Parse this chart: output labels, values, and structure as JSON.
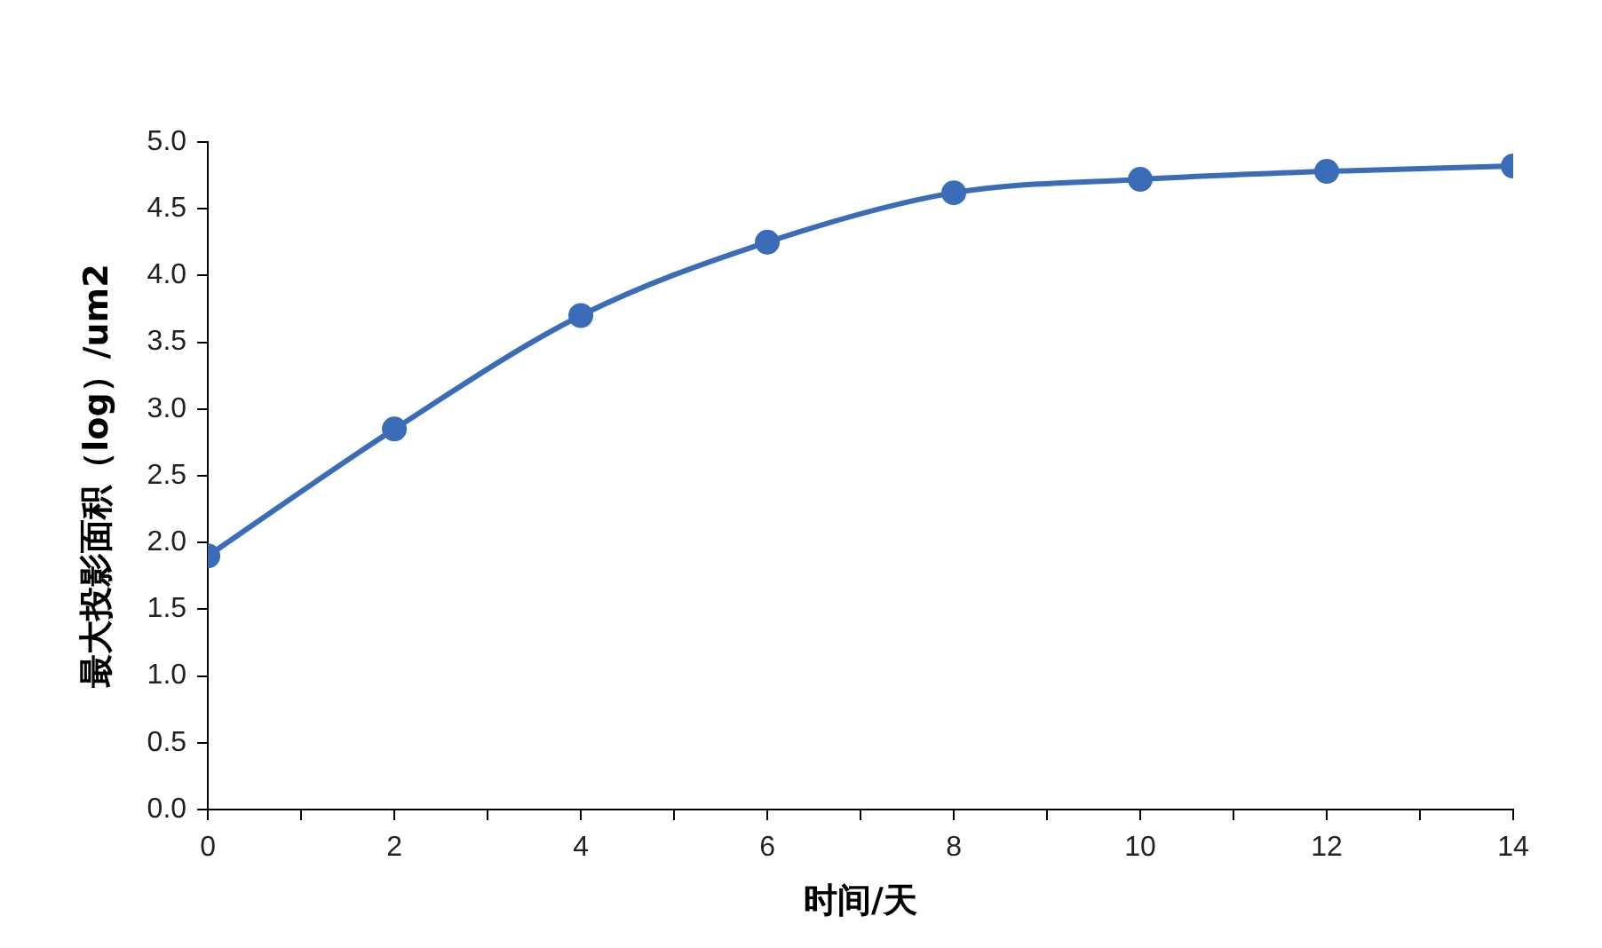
{
  "chart_data": {
    "type": "line",
    "xlabel": "时间/天",
    "ylabel": "最大投影面积（log）/um2",
    "x": [
      0,
      2,
      4,
      6,
      8,
      10,
      12,
      14
    ],
    "series": [
      {
        "color": "#3a6cb8",
        "values": [
          1.9,
          2.85,
          3.7,
          4.25,
          4.62,
          4.72,
          4.78,
          4.82
        ]
      }
    ],
    "xlim": [
      0,
      14
    ],
    "xticks": [
      0,
      {
        "value": 1,
        "label": null
      },
      2,
      {
        "value": 3,
        "label": null
      },
      4,
      {
        "value": 5,
        "label": null
      },
      6,
      {
        "value": 7,
        "label": null
      },
      8,
      {
        "value": 9,
        "label": null
      },
      10,
      {
        "value": 11,
        "label": null
      },
      12,
      {
        "value": 13,
        "label": null
      },
      14
    ],
    "ylim": [
      0,
      5
    ],
    "yticks": [
      {
        "value": 0,
        "label": "0.0"
      },
      0.5,
      {
        "value": 1,
        "label": "1.0"
      },
      1.5,
      {
        "value": 2,
        "label": "2.0"
      },
      2.5,
      {
        "value": 3,
        "label": "3.0"
      },
      3.5,
      {
        "value": 4,
        "label": "4.0"
      },
      4.5,
      {
        "value": 5,
        "label": "5.0"
      }
    ],
    "grid": false,
    "legend": false,
    "marker": "circle",
    "line_style": "solid"
  }
}
